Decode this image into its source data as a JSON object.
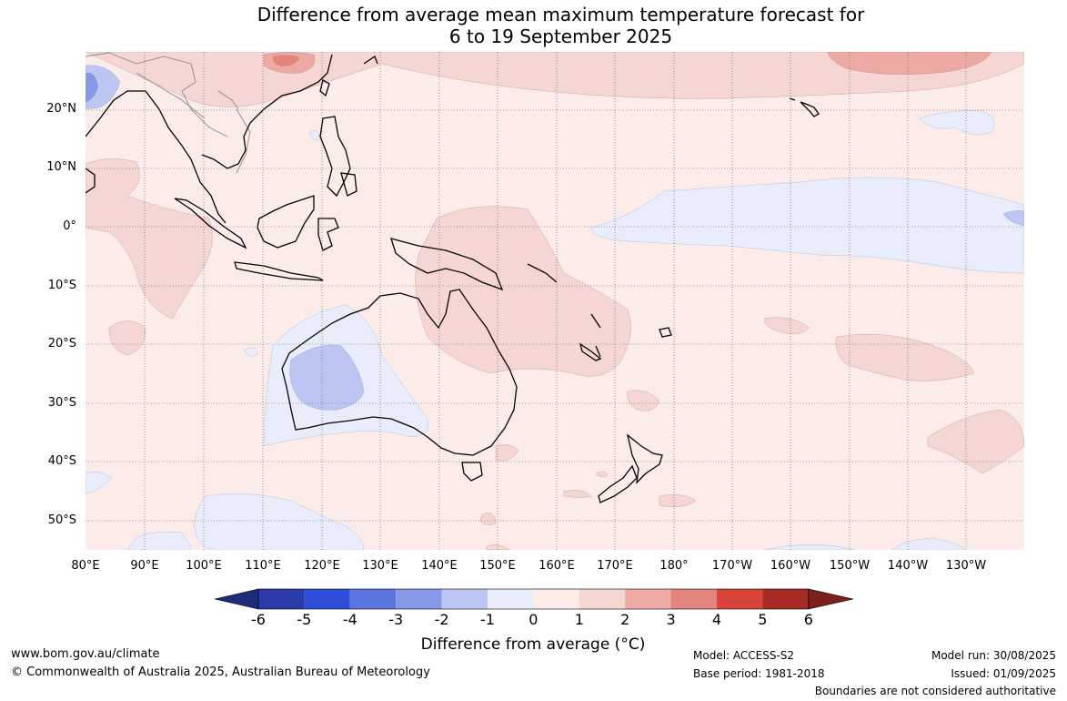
{
  "title": {
    "line1": "Difference from average mean maximum temperature forecast for",
    "line2": "6 to 19 September 2025"
  },
  "lat_labels": [
    "20°N",
    "10°N",
    "0°",
    "10°S",
    "20°S",
    "30°S",
    "40°S",
    "50°S"
  ],
  "lon_labels": [
    "80°E",
    "90°E",
    "100°E",
    "110°E",
    "120°E",
    "130°E",
    "140°E",
    "150°E",
    "160°E",
    "170°E",
    "180°",
    "170°W",
    "160°W",
    "150°W",
    "140°W",
    "130°W"
  ],
  "colorbar": {
    "ticks": [
      "-6",
      "-5",
      "-4",
      "-3",
      "-2",
      "-1",
      "0",
      "1",
      "2",
      "3",
      "4",
      "5",
      "6"
    ],
    "colors": [
      "#2a3aa8",
      "#2f4fd8",
      "#5a74e0",
      "#8598e6",
      "#bcc6f2",
      "#e8ecfb",
      "#fbecea",
      "#f5d6d3",
      "#eda9a4",
      "#e2837c",
      "#d9443a",
      "#a82a24"
    ],
    "low_extend_color": "#1e2b7a",
    "high_extend_color": "#7a1f1a",
    "label_prefix": "Difference from average (",
    "label_unit": "°C",
    "label_suffix": ")"
  },
  "footer": {
    "website": "www.bom.gov.au/climate",
    "copyright": "© Commonwealth of Australia 2025, Australian Bureau of Meteorology",
    "model": "Model: ACCESS-S2",
    "base_period": "Base period: 1981-2018",
    "model_run": "Model run: 30/08/2025",
    "issued": "Issued: 01/09/2025",
    "disclaimer": "Boundaries are not considered authoritative"
  }
}
